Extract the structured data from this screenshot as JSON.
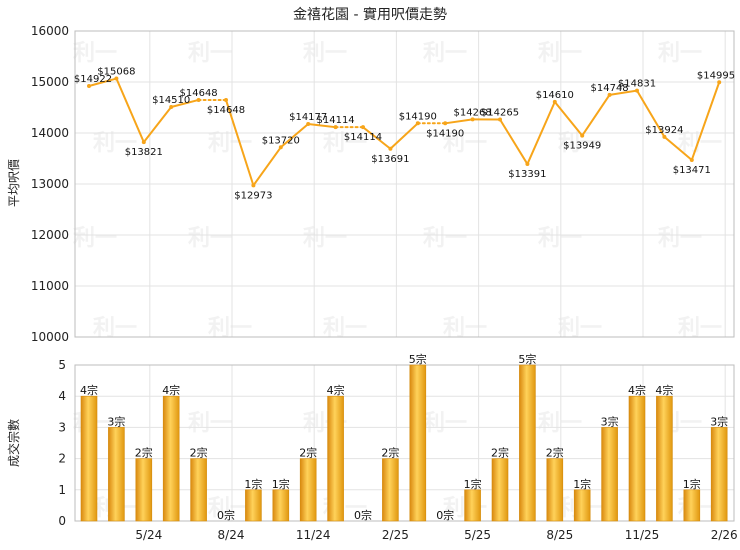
{
  "chart_data": [
    {
      "type": "line",
      "title": "金禧花園 - 實用呎價走勢",
      "ylabel": "平均呎價",
      "ylim": [
        10000,
        16000
      ],
      "yticks": [
        "10000",
        "11000",
        "12000",
        "13000",
        "14000",
        "15000",
        "16000"
      ],
      "color": "#f7a51a",
      "points": [
        {
          "i": 0,
          "value": 14922,
          "label": "$14922"
        },
        {
          "i": 1,
          "value": 15068,
          "label": "$15068"
        },
        {
          "i": 2,
          "value": 13821,
          "label": "$13821"
        },
        {
          "i": 3,
          "value": 14510,
          "label": "$14510"
        },
        {
          "i": 4,
          "value": 14648,
          "label": "$14648"
        },
        {
          "i": 5,
          "value": 14648,
          "label": "$14648"
        },
        {
          "i": 6,
          "value": 12973,
          "label": "$12973"
        },
        {
          "i": 7,
          "value": 13720,
          "label": "$13720"
        },
        {
          "i": 8,
          "value": 14177,
          "label": "$14177"
        },
        {
          "i": 9,
          "value": 14114,
          "label": "$14114"
        },
        {
          "i": 10,
          "value": 14114,
          "label": "$14114"
        },
        {
          "i": 11,
          "value": 13691,
          "label": "$13691"
        },
        {
          "i": 12,
          "value": 14190,
          "label": "$14190"
        },
        {
          "i": 13,
          "value": 14190,
          "label": "$14190"
        },
        {
          "i": 14,
          "value": 14268,
          "label": "$14268"
        },
        {
          "i": 15,
          "value": 14265,
          "label": "$14265"
        },
        {
          "i": 16,
          "value": 13391,
          "label": "$13391"
        },
        {
          "i": 17,
          "value": 14610,
          "label": "$14610"
        },
        {
          "i": 18,
          "value": 13949,
          "label": "$13949"
        },
        {
          "i": 19,
          "value": 14748,
          "label": "$14748"
        },
        {
          "i": 20,
          "value": 14831,
          "label": "$14831"
        },
        {
          "i": 21,
          "value": 13924,
          "label": "$13924"
        },
        {
          "i": 22,
          "value": 13471,
          "label": "$13471"
        },
        {
          "i": 23,
          "value": 14995,
          "label": "$14995"
        }
      ]
    },
    {
      "type": "bar",
      "ylabel": "成交宗數",
      "ylim": [
        0,
        5
      ],
      "yticks": [
        "0",
        "1",
        "2",
        "3",
        "4",
        "5"
      ],
      "color": "#f5b324",
      "values": [
        4,
        3,
        2,
        4,
        2,
        0,
        1,
        1,
        2,
        4,
        0,
        2,
        5,
        0,
        1,
        2,
        5,
        2,
        1,
        3,
        4,
        4,
        1,
        3
      ],
      "bar_labels": [
        "4宗",
        "3宗",
        "2宗",
        "4宗",
        "2宗",
        "0宗",
        "1宗",
        "1宗",
        "2宗",
        "4宗",
        "0宗",
        "2宗",
        "5宗",
        "0宗",
        "1宗",
        "2宗",
        "5宗",
        "2宗",
        "1宗",
        "3宗",
        "4宗",
        "4宗",
        "1宗",
        "3宗"
      ],
      "xtick_labels": [
        {
          "after": 2,
          "label": "5/24"
        },
        {
          "after": 5,
          "label": "8/24"
        },
        {
          "after": 8,
          "label": "11/24"
        },
        {
          "after": 11,
          "label": "2/25"
        },
        {
          "after": 14,
          "label": "5/25"
        },
        {
          "after": 17,
          "label": "8/25"
        },
        {
          "after": 20,
          "label": "11/25"
        },
        {
          "after": 23,
          "label": "2/26"
        }
      ]
    }
  ],
  "watermark": "利一"
}
